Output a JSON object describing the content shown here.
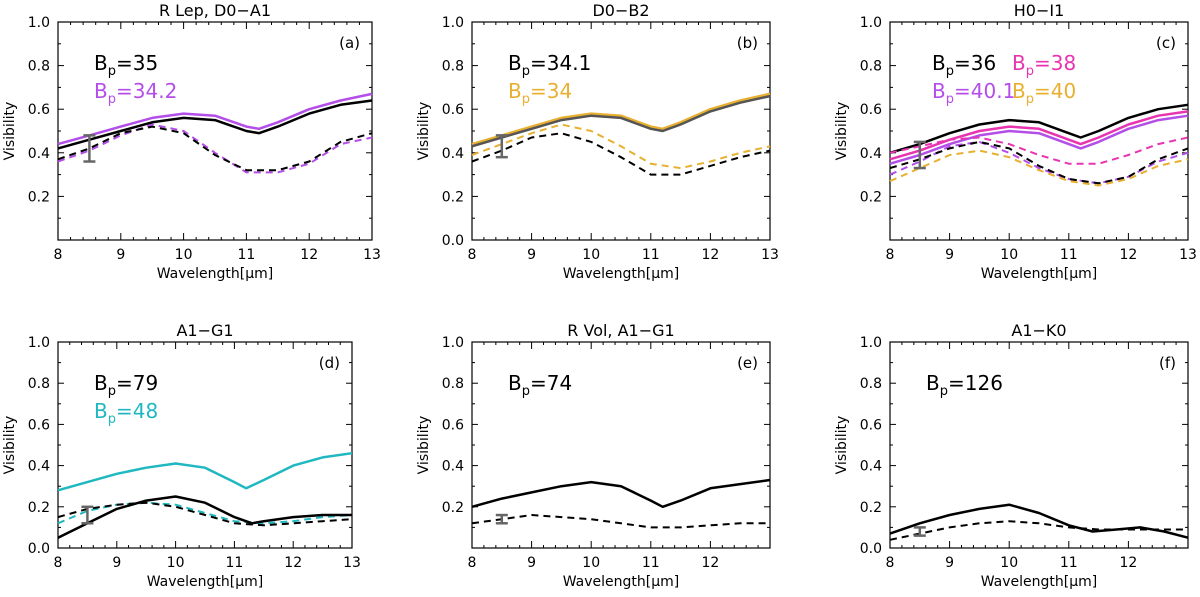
{
  "figure": {
    "xlabel": "Wavelength[μm]",
    "ylabel": "Visibility"
  },
  "chart_data": [
    {
      "panel": "(a)",
      "type": "line",
      "title": "R Lep, D0−A1",
      "xlim": [
        8,
        13
      ],
      "ylim": [
        0.0,
        1.0
      ],
      "x_ticks": [
        "8",
        "9",
        "10",
        "11",
        "12",
        "13"
      ],
      "y_ticks": [
        "0.2",
        "0.4",
        "0.6",
        "0.8",
        "1.0"
      ],
      "xlabel": "Wavelength[μm]",
      "ylabel": "Visibility",
      "legend": [
        {
          "base": "B",
          "sub": "p",
          "value": "=35",
          "color": "#000000"
        },
        {
          "base": "B",
          "sub": "p",
          "value": "=34.2",
          "color": "#b44ee8"
        }
      ],
      "error_bar": {
        "x": 8.5,
        "low": 0.36,
        "high": 0.48
      },
      "series": [
        {
          "name": "B_p=34.2 model",
          "color": "#b44ee8",
          "dash": false,
          "x": [
            8,
            8.5,
            9,
            9.5,
            10,
            10.5,
            11,
            11.2,
            11.5,
            12,
            12.5,
            13
          ],
          "y": [
            0.44,
            0.48,
            0.52,
            0.56,
            0.58,
            0.57,
            0.52,
            0.51,
            0.54,
            0.6,
            0.64,
            0.67
          ]
        },
        {
          "name": "B_p=34.2 data",
          "color": "#b44ee8",
          "dash": true,
          "x": [
            8,
            8.5,
            9,
            9.5,
            10,
            10.5,
            11,
            11.5,
            12,
            12.5,
            13
          ],
          "y": [
            0.36,
            0.41,
            0.48,
            0.53,
            0.5,
            0.4,
            0.31,
            0.31,
            0.35,
            0.44,
            0.47
          ]
        },
        {
          "name": "B_p=35 model",
          "color": "#000000",
          "dash": false,
          "x": [
            8,
            8.5,
            9,
            9.5,
            10,
            10.5,
            11,
            11.2,
            11.5,
            12,
            12.5,
            13
          ],
          "y": [
            0.42,
            0.46,
            0.5,
            0.54,
            0.56,
            0.55,
            0.5,
            0.49,
            0.52,
            0.58,
            0.62,
            0.64
          ]
        },
        {
          "name": "B_p=35 data",
          "color": "#000000",
          "dash": true,
          "x": [
            8,
            8.5,
            9,
            9.5,
            10,
            10.5,
            11,
            11.5,
            12,
            12.5,
            13
          ],
          "y": [
            0.37,
            0.42,
            0.49,
            0.52,
            0.49,
            0.39,
            0.32,
            0.32,
            0.36,
            0.45,
            0.49
          ]
        }
      ]
    },
    {
      "panel": "(b)",
      "type": "line",
      "title": "D0−B2",
      "xlim": [
        8,
        13
      ],
      "ylim": [
        0.0,
        1.0
      ],
      "x_ticks": [
        "8",
        "9",
        "10",
        "11",
        "12",
        "13"
      ],
      "y_ticks": [
        "0.0",
        "0.2",
        "0.4",
        "0.6",
        "0.8",
        "1.0"
      ],
      "xlabel": "Wavelength[μm]",
      "ylabel": "Visibility",
      "legend": [
        {
          "base": "B",
          "sub": "p",
          "value": "=34.1",
          "color": "#000000"
        },
        {
          "base": "B",
          "sub": "p",
          "value": "=34",
          "color": "#e8b030"
        }
      ],
      "error_bar": {
        "x": 8.5,
        "low": 0.38,
        "high": 0.48
      },
      "series": [
        {
          "name": "B_p=34 model",
          "color": "#e8b030",
          "dash": false,
          "x": [
            8,
            8.5,
            9,
            9.5,
            10,
            10.5,
            11,
            11.2,
            11.5,
            12,
            12.5,
            13
          ],
          "y": [
            0.44,
            0.48,
            0.52,
            0.56,
            0.58,
            0.57,
            0.52,
            0.51,
            0.54,
            0.6,
            0.64,
            0.67
          ]
        },
        {
          "name": "B_p=34.1 model",
          "color": "#555555",
          "dash": false,
          "x": [
            8,
            8.5,
            9,
            9.5,
            10,
            10.5,
            11,
            11.2,
            11.5,
            12,
            12.5,
            13
          ],
          "y": [
            0.43,
            0.47,
            0.51,
            0.55,
            0.57,
            0.56,
            0.51,
            0.5,
            0.53,
            0.59,
            0.63,
            0.66
          ]
        },
        {
          "name": "B_p=34 data",
          "color": "#e8b030",
          "dash": true,
          "x": [
            8,
            8.5,
            9,
            9.5,
            10,
            10.5,
            11,
            11.5,
            12,
            12.5,
            13
          ],
          "y": [
            0.39,
            0.44,
            0.49,
            0.53,
            0.5,
            0.43,
            0.35,
            0.33,
            0.36,
            0.4,
            0.43
          ]
        },
        {
          "name": "B_p=34.1 data",
          "color": "#000000",
          "dash": true,
          "x": [
            8,
            8.5,
            9,
            9.5,
            10,
            10.5,
            11,
            11.5,
            12,
            12.5,
            13
          ],
          "y": [
            0.36,
            0.41,
            0.47,
            0.49,
            0.45,
            0.38,
            0.3,
            0.3,
            0.34,
            0.38,
            0.41
          ]
        }
      ]
    },
    {
      "panel": "(c)",
      "type": "line",
      "title": "H0−I1",
      "xlim": [
        8,
        13
      ],
      "ylim": [
        0.0,
        1.0
      ],
      "x_ticks": [
        "8",
        "9",
        "10",
        "11",
        "12",
        "13"
      ],
      "y_ticks": [
        "0.2",
        "0.4",
        "0.6",
        "0.8",
        "1.0"
      ],
      "xlabel": "Wavelength[μm]",
      "ylabel": "Visibility",
      "legend": [
        {
          "base": "B",
          "sub": "p",
          "value": "=36",
          "color": "#000000"
        },
        {
          "base": "B",
          "sub": "p",
          "value": "=38",
          "color": "#e834b0"
        },
        {
          "base": "B",
          "sub": "p",
          "value": "=40.1",
          "color": "#b44ee8"
        },
        {
          "base": "B",
          "sub": "p",
          "value": "=40",
          "color": "#e8b030"
        }
      ],
      "error_bar": {
        "x": 8.5,
        "low": 0.33,
        "high": 0.45
      },
      "series": [
        {
          "name": "B_p=36 model",
          "color": "#000000",
          "dash": false,
          "x": [
            8,
            8.5,
            9,
            9.5,
            10,
            10.5,
            11,
            11.2,
            11.5,
            12,
            12.5,
            13
          ],
          "y": [
            0.4,
            0.44,
            0.49,
            0.53,
            0.55,
            0.54,
            0.49,
            0.47,
            0.5,
            0.56,
            0.6,
            0.62
          ]
        },
        {
          "name": "B_p=38 model",
          "color": "#e834b0",
          "dash": false,
          "x": [
            8,
            8.5,
            9,
            9.5,
            10,
            10.5,
            11,
            11.2,
            11.5,
            12,
            12.5,
            13
          ],
          "y": [
            0.37,
            0.41,
            0.46,
            0.5,
            0.52,
            0.51,
            0.46,
            0.44,
            0.47,
            0.53,
            0.57,
            0.59
          ]
        },
        {
          "name": "B_p=40.1 model",
          "color": "#b44ee8",
          "dash": false,
          "x": [
            8,
            8.5,
            9,
            9.5,
            10,
            10.5,
            11,
            11.2,
            11.5,
            12,
            12.5,
            13
          ],
          "y": [
            0.35,
            0.39,
            0.44,
            0.48,
            0.5,
            0.49,
            0.44,
            0.42,
            0.45,
            0.51,
            0.55,
            0.57
          ]
        },
        {
          "name": "B_p=38 data",
          "color": "#e834b0",
          "dash": true,
          "x": [
            8,
            8.5,
            9,
            9.5,
            10,
            10.5,
            11,
            11.5,
            12,
            12.5,
            13
          ],
          "y": [
            0.4,
            0.43,
            0.46,
            0.47,
            0.44,
            0.39,
            0.35,
            0.35,
            0.39,
            0.44,
            0.47
          ]
        },
        {
          "name": "B_p=40 data",
          "color": "#e8b030",
          "dash": true,
          "x": [
            8,
            8.5,
            9,
            9.5,
            10,
            10.5,
            11,
            11.5,
            12,
            12.5,
            13
          ],
          "y": [
            0.27,
            0.33,
            0.39,
            0.41,
            0.38,
            0.32,
            0.27,
            0.25,
            0.28,
            0.34,
            0.37
          ]
        },
        {
          "name": "B_p=40.1 data",
          "color": "#b44ee8",
          "dash": true,
          "x": [
            8,
            8.5,
            9,
            9.5,
            10,
            10.5,
            11,
            11.5,
            12,
            12.5,
            13
          ],
          "y": [
            0.3,
            0.36,
            0.43,
            0.45,
            0.4,
            0.33,
            0.28,
            0.26,
            0.29,
            0.36,
            0.4
          ]
        },
        {
          "name": "B_p=36 data",
          "color": "#000000",
          "dash": true,
          "x": [
            8,
            8.5,
            9,
            9.5,
            10,
            10.5,
            11,
            11.5,
            12,
            12.5,
            13
          ],
          "y": [
            0.33,
            0.37,
            0.42,
            0.45,
            0.42,
            0.34,
            0.28,
            0.26,
            0.29,
            0.37,
            0.42
          ]
        }
      ]
    },
    {
      "panel": "(d)",
      "type": "line",
      "title": "A1−G1",
      "xlim": [
        8,
        13
      ],
      "ylim": [
        0.0,
        1.0
      ],
      "x_ticks": [
        "8",
        "9",
        "10",
        "11",
        "12",
        "13"
      ],
      "y_ticks": [
        "0.0",
        "0.2",
        "0.4",
        "0.6",
        "0.8",
        "1.0"
      ],
      "xlabel": "Wavelength[μm]",
      "ylabel": "Visibility",
      "legend": [
        {
          "base": "B",
          "sub": "p",
          "value": "=79",
          "color": "#000000"
        },
        {
          "base": "B",
          "sub": "p",
          "value": "=48",
          "color": "#20b8c0"
        }
      ],
      "error_bar": {
        "x": 8.5,
        "low": 0.12,
        "high": 0.2
      },
      "series": [
        {
          "name": "B_p=48 model",
          "color": "#20b8c0",
          "dash": false,
          "x": [
            8,
            8.5,
            9,
            9.5,
            10,
            10.5,
            11,
            11.2,
            11.5,
            12,
            12.5,
            13
          ],
          "y": [
            0.28,
            0.32,
            0.36,
            0.39,
            0.41,
            0.39,
            0.32,
            0.29,
            0.33,
            0.4,
            0.44,
            0.46
          ]
        },
        {
          "name": "B_p=48 data",
          "color": "#20b8c0",
          "dash": true,
          "x": [
            8,
            8.5,
            9,
            9.5,
            10,
            10.5,
            11,
            11.5,
            12,
            12.5,
            13
          ],
          "y": [
            0.12,
            0.18,
            0.21,
            0.22,
            0.21,
            0.17,
            0.13,
            0.12,
            0.13,
            0.15,
            0.16
          ]
        },
        {
          "name": "B_p=79 model",
          "color": "#000000",
          "dash": false,
          "x": [
            8,
            8.5,
            9,
            9.5,
            10,
            10.5,
            11,
            11.3,
            11.5,
            12,
            12.5,
            13
          ],
          "y": [
            0.05,
            0.12,
            0.19,
            0.23,
            0.25,
            0.22,
            0.15,
            0.12,
            0.13,
            0.15,
            0.16,
            0.16
          ]
        },
        {
          "name": "B_p=79 data",
          "color": "#000000",
          "dash": true,
          "x": [
            8,
            8.5,
            9,
            9.5,
            10,
            10.5,
            11,
            11.5,
            12,
            12.5,
            13
          ],
          "y": [
            0.15,
            0.19,
            0.21,
            0.22,
            0.2,
            0.16,
            0.12,
            0.11,
            0.12,
            0.13,
            0.14
          ]
        }
      ]
    },
    {
      "panel": "(e)",
      "type": "line",
      "title": "R Vol, A1−G1",
      "xlim": [
        8,
        13
      ],
      "ylim": [
        0.0,
        1.0
      ],
      "x_ticks": [
        "8",
        "9",
        "10",
        "11",
        "12"
      ],
      "y_ticks": [
        "0.2",
        "0.4",
        "0.6",
        "0.8",
        "1.0"
      ],
      "xlabel": "Wavelength[μm]",
      "ylabel": "Visibility",
      "legend": [
        {
          "base": "B",
          "sub": "p",
          "value": "=74",
          "color": "#000000"
        }
      ],
      "error_bar": {
        "x": 8.5,
        "low": 0.12,
        "high": 0.16
      },
      "series": [
        {
          "name": "B_p=74 model",
          "color": "#000000",
          "dash": false,
          "x": [
            8,
            8.5,
            9,
            9.5,
            10,
            10.5,
            11,
            11.2,
            11.5,
            12,
            12.5,
            13
          ],
          "y": [
            0.2,
            0.24,
            0.27,
            0.3,
            0.32,
            0.3,
            0.23,
            0.2,
            0.23,
            0.29,
            0.31,
            0.33
          ]
        },
        {
          "name": "B_p=74 data",
          "color": "#000000",
          "dash": true,
          "x": [
            8,
            8.5,
            9,
            9.5,
            10,
            10.5,
            11,
            11.5,
            12,
            12.5,
            13
          ],
          "y": [
            0.12,
            0.14,
            0.16,
            0.15,
            0.14,
            0.12,
            0.1,
            0.1,
            0.11,
            0.12,
            0.12
          ]
        }
      ]
    },
    {
      "panel": "(f)",
      "type": "line",
      "title": "A1−K0",
      "xlim": [
        8,
        13
      ],
      "ylim": [
        0.0,
        1.0
      ],
      "x_ticks": [
        "8",
        "9",
        "10",
        "11",
        "12"
      ],
      "y_ticks": [
        "0.0",
        "0.2",
        "0.4",
        "0.6",
        "0.8",
        "1.0"
      ],
      "xlabel": "Wavelength[μm]",
      "ylabel": "Visibility",
      "legend": [
        {
          "base": "B",
          "sub": "p",
          "value": "=126",
          "color": "#000000"
        }
      ],
      "error_bar": {
        "x": 8.5,
        "low": 0.06,
        "high": 0.1
      },
      "series": [
        {
          "name": "B_p=126 model",
          "color": "#000000",
          "dash": false,
          "x": [
            8,
            8.5,
            9,
            9.5,
            10,
            10.5,
            11,
            11.4,
            11.8,
            12.2,
            12.6,
            13
          ],
          "y": [
            0.07,
            0.12,
            0.16,
            0.19,
            0.21,
            0.17,
            0.11,
            0.08,
            0.09,
            0.1,
            0.08,
            0.05
          ]
        },
        {
          "name": "B_p=126 data",
          "color": "#000000",
          "dash": true,
          "x": [
            8,
            8.5,
            9,
            9.5,
            10,
            10.5,
            11,
            11.5,
            12,
            12.5,
            13
          ],
          "y": [
            0.04,
            0.07,
            0.1,
            0.12,
            0.13,
            0.12,
            0.1,
            0.09,
            0.09,
            0.09,
            0.09
          ]
        }
      ]
    }
  ]
}
